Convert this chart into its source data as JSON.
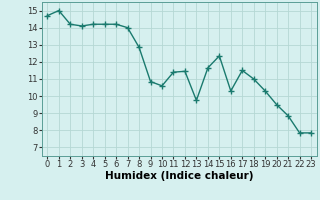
{
  "x": [
    0,
    1,
    2,
    3,
    4,
    5,
    6,
    7,
    8,
    9,
    10,
    11,
    12,
    13,
    14,
    15,
    16,
    17,
    18,
    19,
    20,
    21,
    22,
    23
  ],
  "y": [
    14.7,
    15.0,
    14.2,
    14.1,
    14.2,
    14.2,
    14.2,
    14.0,
    12.85,
    10.85,
    10.6,
    11.4,
    11.45,
    9.75,
    11.65,
    12.35,
    10.3,
    11.5,
    11.0,
    10.3,
    9.5,
    8.85,
    7.85,
    7.85
  ],
  "line_color": "#1a7a6e",
  "marker": "+",
  "marker_size": 4,
  "bg_color": "#d6f0ef",
  "grid_color": "#b5d8d4",
  "xlabel": "Humidex (Indice chaleur)",
  "xlim": [
    -0.5,
    23.5
  ],
  "ylim": [
    6.5,
    15.5
  ],
  "xticks": [
    0,
    1,
    2,
    3,
    4,
    5,
    6,
    7,
    8,
    9,
    10,
    11,
    12,
    13,
    14,
    15,
    16,
    17,
    18,
    19,
    20,
    21,
    22,
    23
  ],
  "yticks": [
    7,
    8,
    9,
    10,
    11,
    12,
    13,
    14,
    15
  ],
  "tick_fontsize": 6,
  "xlabel_fontsize": 7.5,
  "line_width": 1.0
}
